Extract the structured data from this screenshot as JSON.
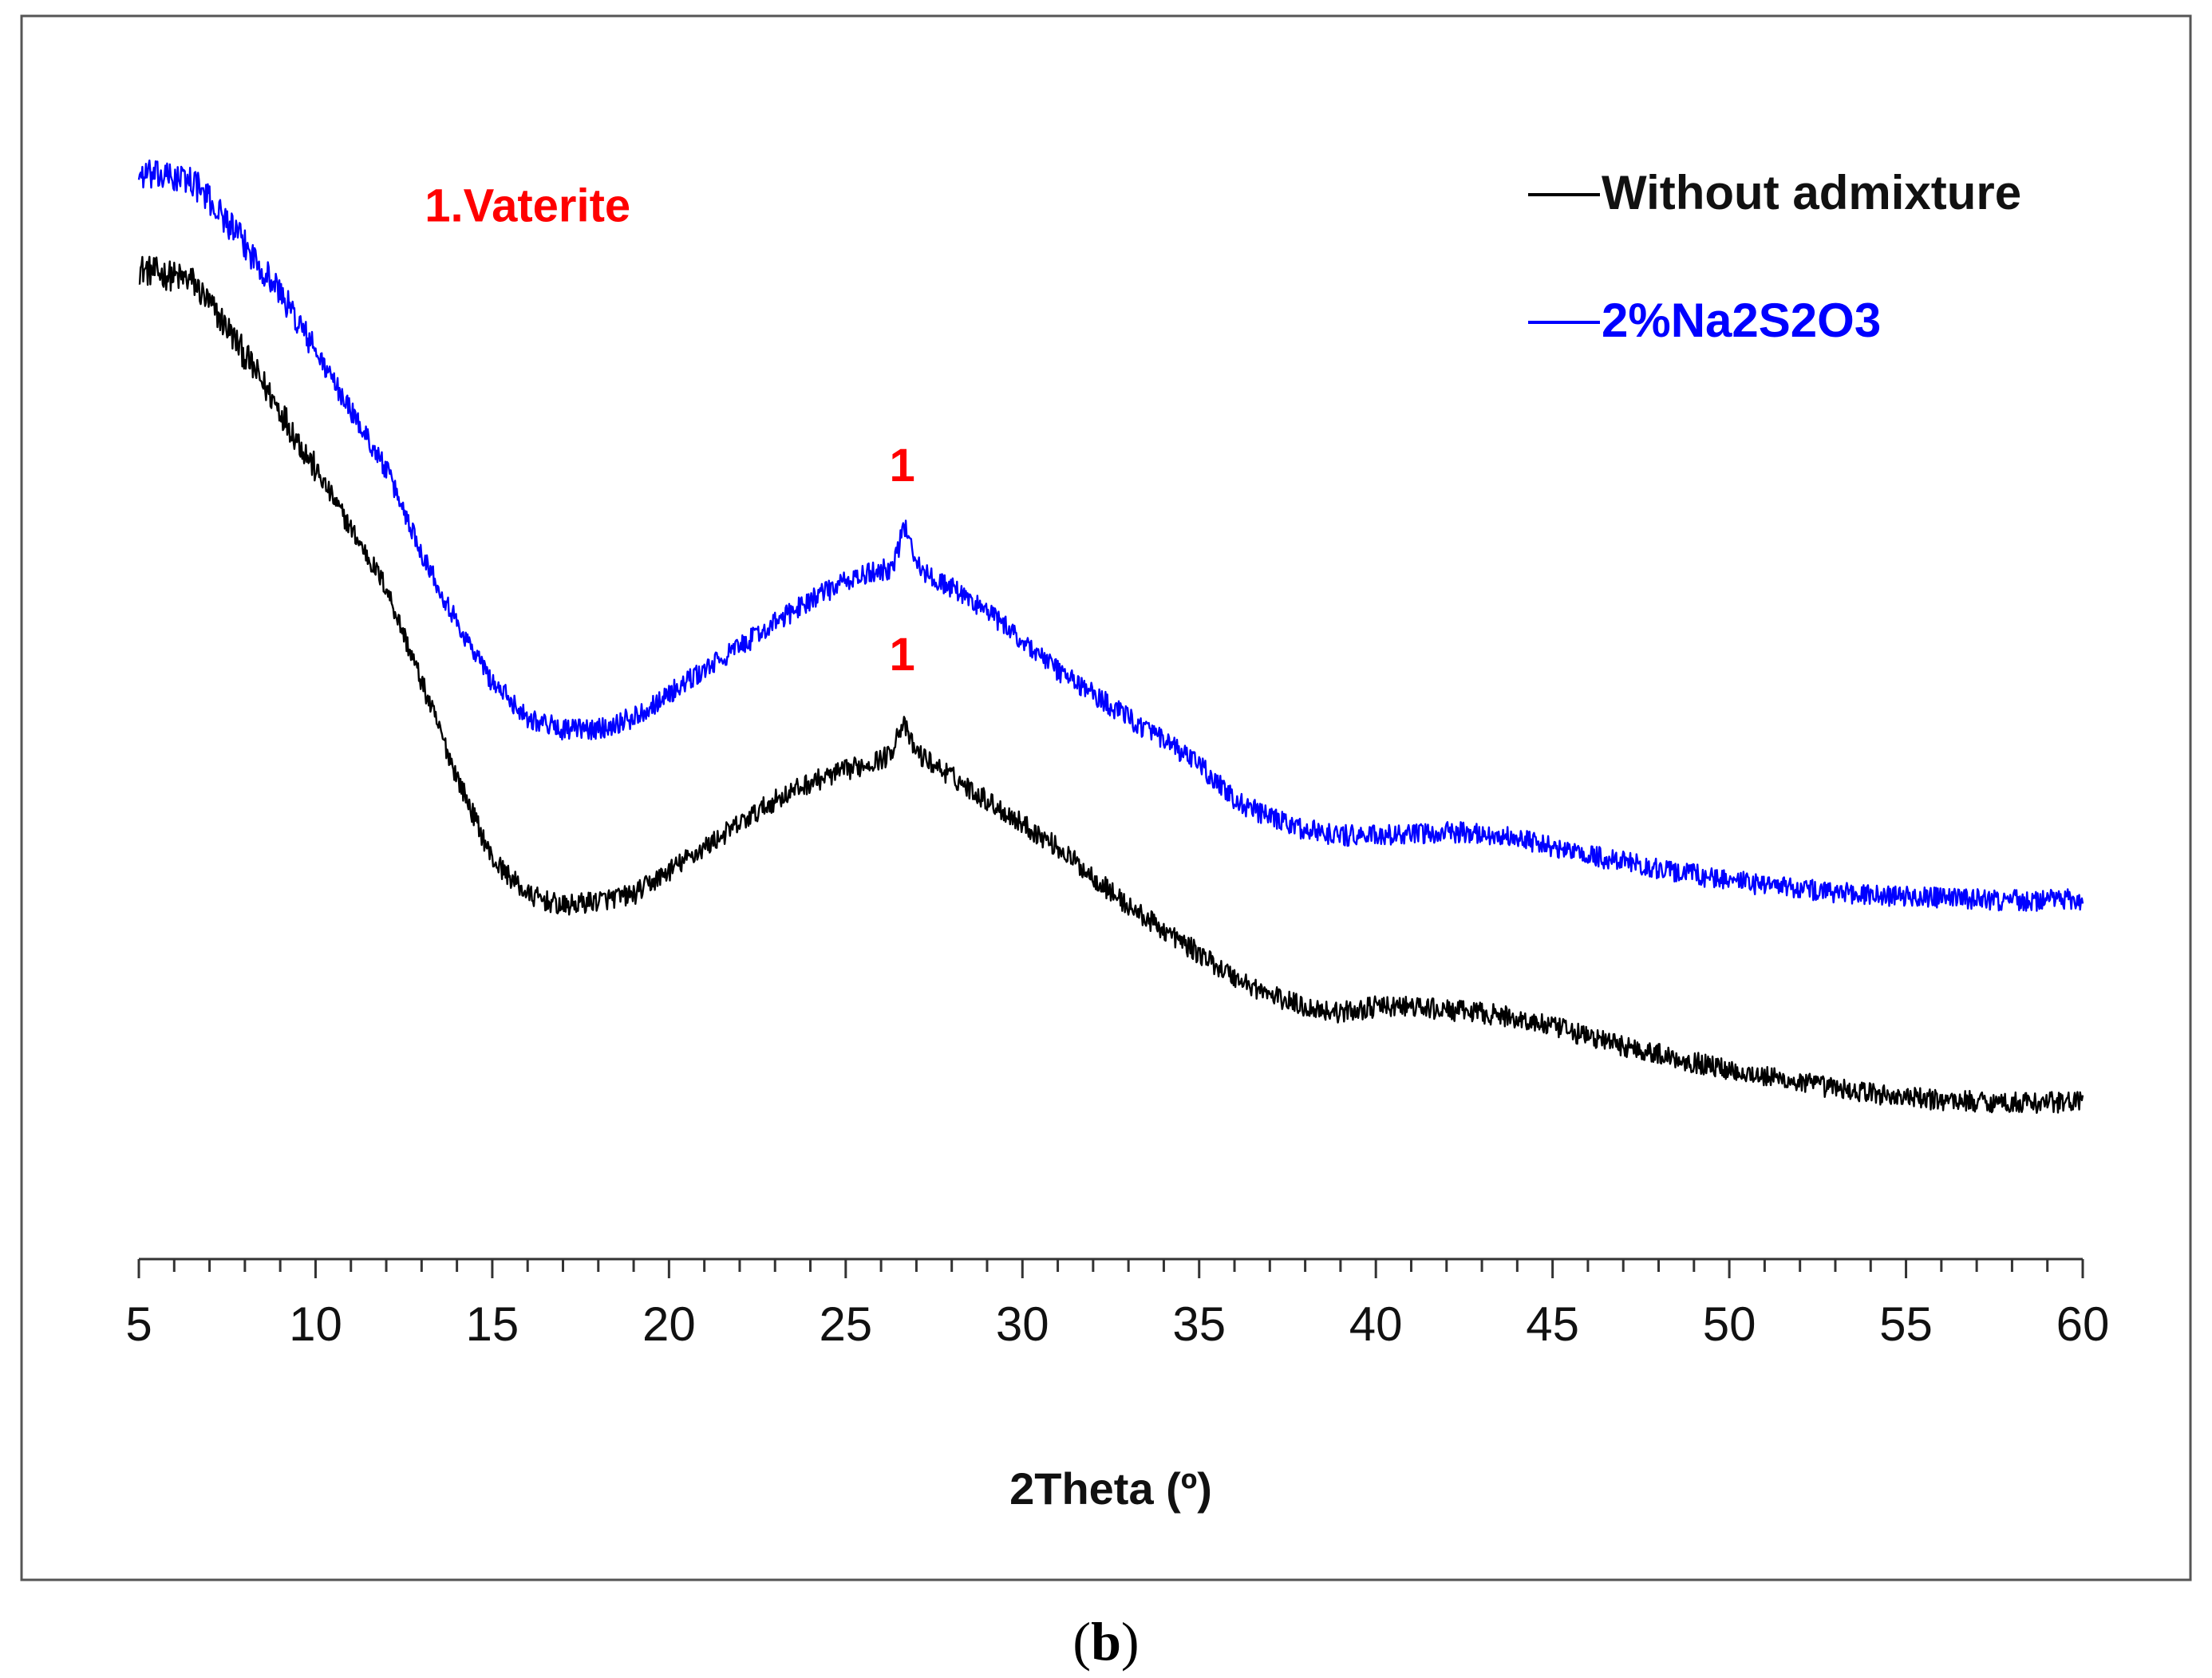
{
  "chart_data": {
    "type": "line",
    "title": "",
    "xlabel": "2Theta (º)",
    "ylabel": "",
    "xlim": [
      5,
      60
    ],
    "ylim": [
      0,
      100
    ],
    "x_ticks": [
      5,
      10,
      15,
      20,
      25,
      30,
      35,
      40,
      45,
      50,
      55,
      60
    ],
    "y_axis_visible": false,
    "grid": false,
    "legend_position": "top-right",
    "colors": {
      "without_admixture": "#000000",
      "na2s2o3": "#0000ff",
      "annotation": "#ff0000"
    },
    "series": [
      {
        "name": "Without admixture",
        "color": "#000000",
        "key_points": [
          [
            5,
            84
          ],
          [
            6.5,
            83
          ],
          [
            7.5,
            79
          ],
          [
            9,
            72
          ],
          [
            10,
            67
          ],
          [
            11,
            62
          ],
          [
            12,
            57
          ],
          [
            13,
            49
          ],
          [
            14,
            41
          ],
          [
            15,
            34
          ],
          [
            16,
            31
          ],
          [
            17,
            30
          ],
          [
            18,
            30.5
          ],
          [
            19,
            31
          ],
          [
            20,
            33
          ],
          [
            21,
            35
          ],
          [
            22,
            37
          ],
          [
            23,
            39
          ],
          [
            24,
            40.5
          ],
          [
            25,
            41.5
          ],
          [
            26,
            42.5
          ],
          [
            27,
            43
          ],
          [
            28,
            41
          ],
          [
            29,
            39
          ],
          [
            30,
            37
          ],
          [
            31,
            35
          ],
          [
            32,
            32.5
          ],
          [
            33,
            30
          ],
          [
            34,
            28
          ],
          [
            35,
            26
          ],
          [
            36,
            24
          ],
          [
            37,
            22.5
          ],
          [
            38,
            21.5
          ],
          [
            39,
            21
          ],
          [
            40,
            21.5
          ],
          [
            41,
            21.5
          ],
          [
            42,
            21.2
          ],
          [
            43,
            21
          ],
          [
            44,
            20.5
          ],
          [
            45,
            19.8
          ],
          [
            46,
            19
          ],
          [
            47,
            18.2
          ],
          [
            48,
            17.5
          ],
          [
            49,
            16.8
          ],
          [
            50,
            16.2
          ],
          [
            51,
            15.6
          ],
          [
            52,
            15.1
          ],
          [
            53,
            14.6
          ],
          [
            54,
            14.2
          ],
          [
            55,
            13.8
          ],
          [
            56,
            13.6
          ],
          [
            57,
            13.5
          ],
          [
            58,
            13.4
          ],
          [
            59,
            13.4
          ],
          [
            60,
            13.5
          ]
        ],
        "peaks": [
          {
            "x": 26.6,
            "height": 2.5
          }
        ]
      },
      {
        "name": "2%Na2S2O3",
        "color": "#0000ff",
        "key_points": [
          [
            5,
            92
          ],
          [
            6.5,
            91.5
          ],
          [
            7.5,
            88
          ],
          [
            9,
            82
          ],
          [
            10,
            77
          ],
          [
            11,
            72
          ],
          [
            12,
            67
          ],
          [
            13,
            60
          ],
          [
            14,
            54
          ],
          [
            15,
            49
          ],
          [
            16,
            46
          ],
          [
            17,
            45
          ],
          [
            18,
            45
          ],
          [
            19,
            46
          ],
          [
            20,
            48
          ],
          [
            21,
            50
          ],
          [
            22,
            52
          ],
          [
            23,
            54
          ],
          [
            24,
            56
          ],
          [
            25,
            57.5
          ],
          [
            26,
            58.5
          ],
          [
            27,
            58.5
          ],
          [
            28,
            57
          ],
          [
            29,
            55
          ],
          [
            30,
            52.5
          ],
          [
            31,
            50
          ],
          [
            32,
            48
          ],
          [
            33,
            46
          ],
          [
            34,
            44
          ],
          [
            35,
            42
          ],
          [
            36,
            39
          ],
          [
            37,
            37.5
          ],
          [
            38,
            36.5
          ],
          [
            39,
            36
          ],
          [
            40,
            36
          ],
          [
            41,
            36
          ],
          [
            42,
            36.3
          ],
          [
            43,
            36.2
          ],
          [
            44,
            35.8
          ],
          [
            45,
            35
          ],
          [
            46,
            34.3
          ],
          [
            47,
            33.8
          ],
          [
            48,
            33.2
          ],
          [
            49,
            32.7
          ],
          [
            50,
            32.2
          ],
          [
            51,
            31.8
          ],
          [
            52,
            31.5
          ],
          [
            53,
            31.2
          ],
          [
            54,
            31
          ],
          [
            55,
            30.8
          ],
          [
            56,
            30.7
          ],
          [
            57,
            30.6
          ],
          [
            58,
            30.5
          ],
          [
            59,
            30.5
          ],
          [
            60,
            30.6
          ]
        ],
        "peaks": [
          {
            "x": 26.7,
            "height": 3.5
          }
        ]
      }
    ],
    "annotations": [
      {
        "text": "1.Vaterite",
        "x": 16,
        "y": 88
      },
      {
        "text": "1",
        "x": 26.6,
        "y": 66
      },
      {
        "text": "1",
        "x": 26.6,
        "y": 50
      }
    ],
    "legend": [
      {
        "label": "Without admixture",
        "series": "Without admixture"
      },
      {
        "label": "2%Na2S2O3",
        "series": "2%Na2S2O3"
      }
    ]
  },
  "caption": {
    "open_paren": "(",
    "letter": "b",
    "close_paren": ")"
  }
}
